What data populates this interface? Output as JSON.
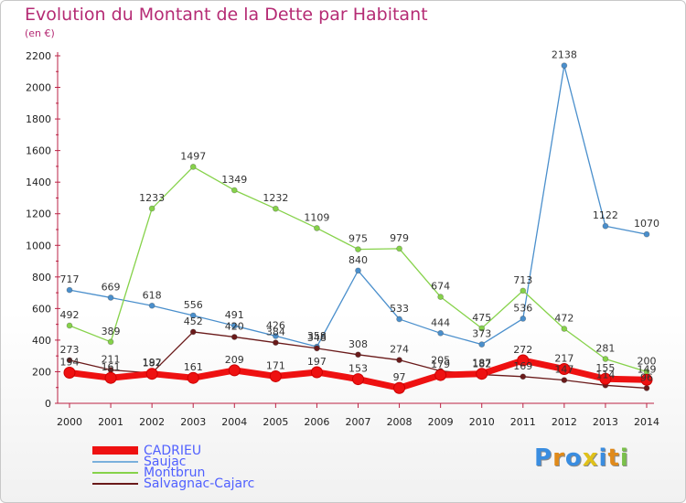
{
  "title": "Evolution du Montant de la Dette par Habitant",
  "unit": "(en €)",
  "logo": "Proxiti",
  "colors": {
    "title": "#b52b74",
    "axis": "#bb2244",
    "legend_text": "#5060ff"
  },
  "chart_data": {
    "type": "line",
    "title": "Evolution du Montant de la Dette par Habitant",
    "subtitle": "(en €)",
    "xlabel": "",
    "ylabel": "",
    "ylim": [
      0,
      2200
    ],
    "yticks": [
      0,
      200,
      400,
      600,
      800,
      1000,
      1200,
      1400,
      1600,
      1800,
      2000,
      2200
    ],
    "grid": false,
    "legend_position": "bottom-left",
    "x": [
      "2000",
      "2001",
      "2002",
      "2003",
      "2004",
      "2005",
      "2006",
      "2007",
      "2008",
      "2009",
      "2010",
      "2011",
      "2012",
      "2013",
      "2014"
    ],
    "series": [
      {
        "name": "Saujac",
        "color": "#4a8fcc",
        "values": [
          717,
          669,
          618,
          556,
          491,
          426,
          358,
          840,
          533,
          444,
          373,
          536,
          2138,
          1122,
          1070
        ],
        "labels": [
          "717",
          "669",
          "618",
          "556",
          "491",
          "426",
          "358",
          "840",
          "533",
          "444",
          "373",
          "536",
          "2138",
          "1122",
          "1070"
        ]
      },
      {
        "name": "Montbrun",
        "color": "#86d24a",
        "values": [
          492,
          389,
          1233,
          1497,
          1349,
          1232,
          1109,
          975,
          979,
          674,
          475,
          713,
          472,
          281,
          200
        ],
        "labels": [
          "492",
          "389",
          "1233",
          "1497",
          "1349",
          "1232",
          "1109",
          "975",
          "979",
          "674",
          "475",
          "713",
          "472",
          "281",
          "200"
        ]
      },
      {
        "name": "Salvagnac-Cajarc",
        "color": "#6a1a1a",
        "values": [
          273,
          211,
          192,
          452,
          420,
          384,
          348,
          308,
          274,
          205,
          182,
          169,
          147,
          114,
          96
        ],
        "labels": [
          "273",
          "211",
          "192",
          "452",
          "420",
          "384",
          "348",
          "308",
          "274",
          "205",
          "182",
          "169",
          "147",
          "114",
          "96"
        ]
      },
      {
        "name": "CADRIEU",
        "color": "#ee1111",
        "values": [
          194,
          161,
          187,
          161,
          209,
          171,
          197,
          153,
          97,
          179,
          187,
          272,
          217,
          155,
          149
        ],
        "labels": [
          "194",
          "161",
          "187",
          "161",
          "209",
          "171",
          "197",
          "153",
          "97",
          "179",
          "187",
          "272",
          "217",
          "155",
          "149"
        ]
      }
    ]
  },
  "legend": [
    {
      "name": "CADRIEU",
      "color": "#ee1111",
      "thickness": 9
    },
    {
      "name": "Saujac",
      "color": "#7ab0dc",
      "thickness": 2
    },
    {
      "name": "Montbrun",
      "color": "#86d24a",
      "thickness": 2
    },
    {
      "name": "Salvagnac-Cajarc",
      "color": "#6a1a1a",
      "thickness": 2
    }
  ]
}
